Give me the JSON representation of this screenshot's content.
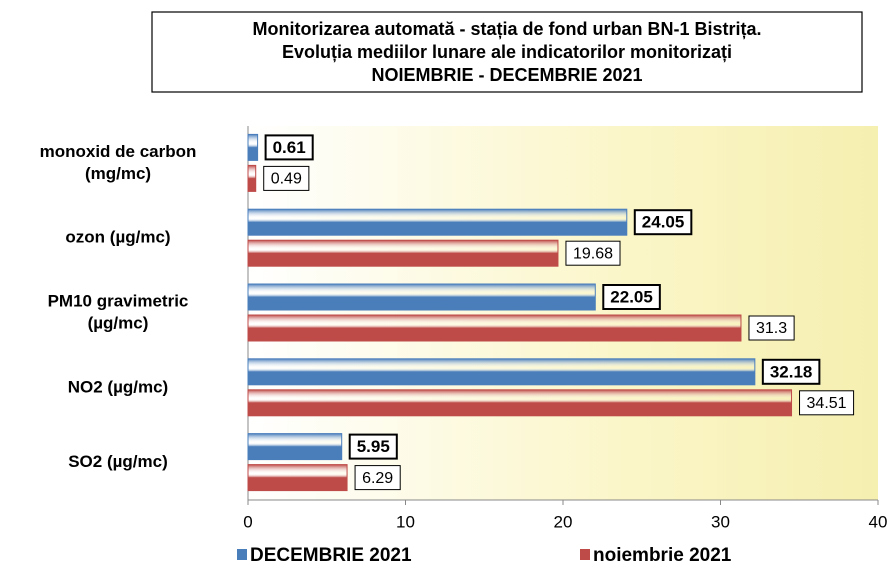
{
  "chart_data": {
    "type": "bar",
    "orientation": "horizontal",
    "title": [
      "Monitorizarea automată  - stația de fond urban BN-1 Bistrița.",
      "Evoluția mediilor lunare ale indicatorilor monitorizați",
      "NOIEMBRIE - DECEMBRIE 2021"
    ],
    "categories": [
      [
        "monoxid de carbon",
        "(mg/mc)"
      ],
      [
        "ozon (µg/mc)"
      ],
      [
        "PM10 gravimetric",
        "(µg/mc)"
      ],
      [
        "NO2 (µg/mc)"
      ],
      [
        "SO2 (µg/mc)"
      ]
    ],
    "series": [
      {
        "name": "DECEMBRIE 2021",
        "color": "#4a7ebb",
        "values": [
          0.61,
          24.05,
          22.05,
          32.18,
          5.95
        ]
      },
      {
        "name": "noiembrie 2021",
        "color": "#be4b48",
        "values": [
          0.49,
          19.68,
          31.3,
          34.51,
          6.29
        ]
      }
    ],
    "xlim": [
      0,
      40
    ],
    "xticks": [
      0,
      10,
      20,
      30,
      40
    ],
    "legend": "bottom"
  }
}
